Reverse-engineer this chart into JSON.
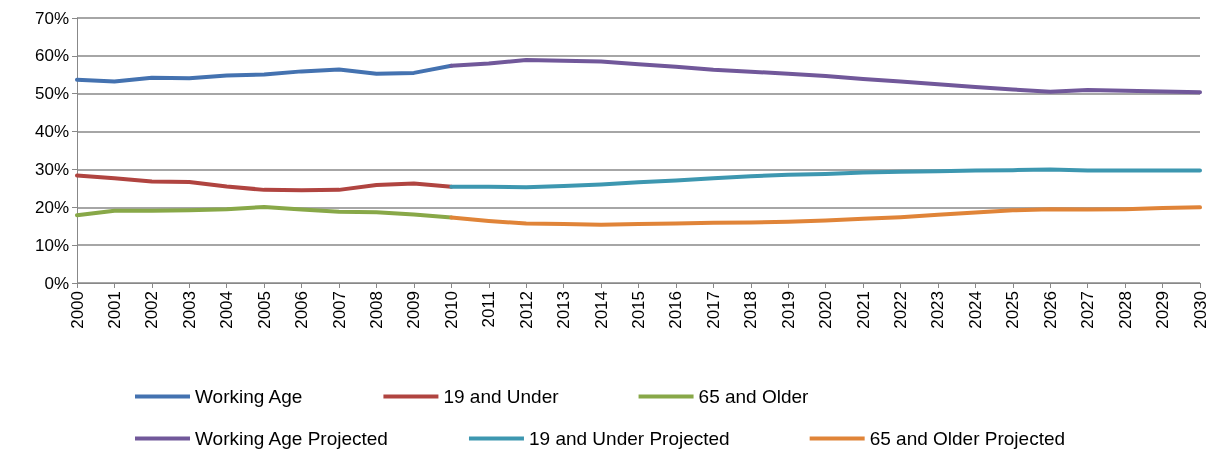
{
  "chart_data": {
    "type": "line",
    "categories": [
      "2000",
      "2001",
      "2002",
      "2003",
      "2004",
      "2005",
      "2006",
      "2007",
      "2008",
      "2009",
      "2010",
      "2011",
      "2012",
      "2013",
      "2014",
      "2015",
      "2016",
      "2017",
      "2018",
      "2019",
      "2020",
      "2021",
      "2022",
      "2023",
      "2024",
      "2025",
      "2026",
      "2027",
      "2028",
      "2029",
      "2030"
    ],
    "ylim": [
      0,
      70
    ],
    "yticks": [
      {
        "value": 0,
        "label": "0%"
      },
      {
        "value": 10,
        "label": "10%"
      },
      {
        "value": 20,
        "label": "20%"
      },
      {
        "value": 30,
        "label": "30%"
      },
      {
        "value": 40,
        "label": "40%"
      },
      {
        "value": 50,
        "label": "50%"
      },
      {
        "value": 60,
        "label": "60%"
      },
      {
        "value": 70,
        "label": "70%"
      }
    ],
    "grid": "y",
    "legend": "bottom",
    "marker": "none",
    "line_style": "solid",
    "series": [
      {
        "name": "Working Age",
        "color": "#4472b0",
        "values": [
          53.7,
          53.2,
          54.2,
          54.1,
          54.8,
          55.1,
          55.9,
          56.4,
          55.3,
          55.5,
          57.4,
          null,
          null,
          null,
          null,
          null,
          null,
          null,
          null,
          null,
          null,
          null,
          null,
          null,
          null,
          null,
          null,
          null,
          null,
          null,
          null
        ]
      },
      {
        "name": "19 and Under",
        "color": "#b04440",
        "values": [
          28.4,
          27.7,
          26.8,
          26.7,
          25.5,
          24.6,
          24.5,
          24.6,
          25.9,
          26.3,
          25.4,
          null,
          null,
          null,
          null,
          null,
          null,
          null,
          null,
          null,
          null,
          null,
          null,
          null,
          null,
          null,
          null,
          null,
          null,
          null,
          null
        ]
      },
      {
        "name": "65 and Older",
        "color": "#88a848",
        "values": [
          17.9,
          19.1,
          19.1,
          19.2,
          19.5,
          20.1,
          19.4,
          18.8,
          18.7,
          18.1,
          17.3,
          null,
          null,
          null,
          null,
          null,
          null,
          null,
          null,
          null,
          null,
          null,
          null,
          null,
          null,
          null,
          null,
          null,
          null,
          null,
          null
        ]
      },
      {
        "name": "Working Age Projected",
        "color": "#71589a",
        "values": [
          null,
          null,
          null,
          null,
          null,
          null,
          null,
          null,
          null,
          null,
          57.4,
          58.0,
          58.9,
          58.7,
          58.5,
          57.8,
          57.1,
          56.3,
          55.8,
          55.3,
          54.7,
          53.9,
          53.2,
          52.5,
          51.8,
          51.1,
          50.5,
          51.0,
          50.8,
          50.6,
          50.4
        ]
      },
      {
        "name": "19 and Under Projected",
        "color": "#3d97b0",
        "values": [
          null,
          null,
          null,
          null,
          null,
          null,
          null,
          null,
          null,
          null,
          25.4,
          25.4,
          25.3,
          25.6,
          26.0,
          26.6,
          27.1,
          27.7,
          28.2,
          28.6,
          28.8,
          29.2,
          29.4,
          29.5,
          29.7,
          29.8,
          30.0,
          29.7,
          29.7,
          29.7,
          29.7
        ]
      },
      {
        "name": "65 and Older Projected",
        "color": "#e08438",
        "values": [
          null,
          null,
          null,
          null,
          null,
          null,
          null,
          null,
          null,
          null,
          17.3,
          16.4,
          15.7,
          15.6,
          15.4,
          15.6,
          15.7,
          15.9,
          16.0,
          16.2,
          16.5,
          17.0,
          17.4,
          18.0,
          18.6,
          19.2,
          19.5,
          19.4,
          19.5,
          19.8,
          20.0
        ]
      }
    ]
  }
}
